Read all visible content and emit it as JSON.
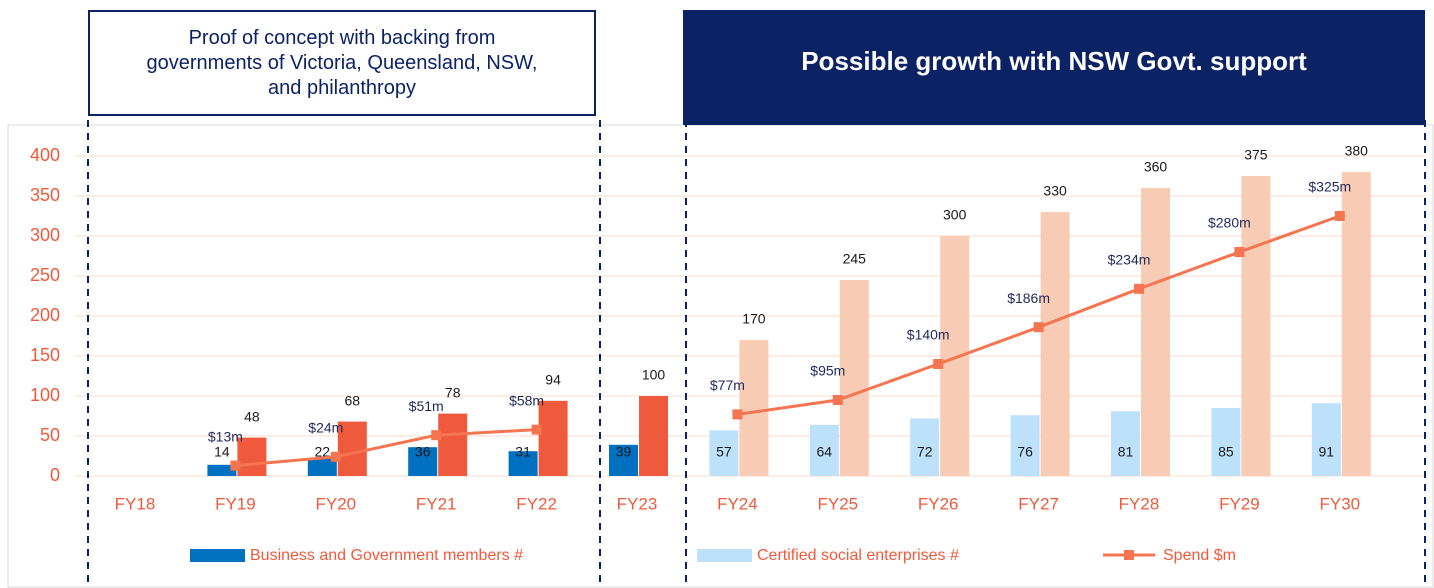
{
  "header": {
    "left": "Proof of concept with backing from governments of Victoria, Queensland, NSW, and philanthropy",
    "right": "Possible growth with NSW Govt. support"
  },
  "chart_data": {
    "type": "bar",
    "categories": [
      "FY18",
      "FY19",
      "FY20",
      "FY21",
      "FY22",
      "FY23",
      "FY24",
      "FY25",
      "FY26",
      "FY27",
      "FY28",
      "FY29",
      "FY30"
    ],
    "series": [
      {
        "name": "Business and Government members #",
        "color": "#0070c0",
        "values": [
          null,
          14,
          22,
          36,
          31,
          39,
          null,
          null,
          null,
          null,
          null,
          null,
          null
        ]
      },
      {
        "name": "Certified social enterprises #",
        "color": "#bde0fb",
        "values": [
          null,
          null,
          null,
          null,
          null,
          null,
          57,
          64,
          72,
          76,
          81,
          85,
          91
        ]
      },
      {
        "color": "#f05a3c",
        "values": [
          null,
          48,
          68,
          78,
          94,
          100,
          null,
          null,
          null,
          null,
          null,
          null,
          null
        ]
      },
      {
        "color": "#f8cbb4",
        "values": [
          null,
          null,
          null,
          null,
          null,
          null,
          170,
          245,
          300,
          330,
          360,
          375,
          380
        ]
      },
      {
        "name": "Spend $m",
        "type": "line",
        "color": "#f4754f",
        "values": [
          null,
          13,
          24,
          51,
          58,
          null,
          77,
          95,
          140,
          186,
          234,
          280,
          325
        ],
        "value_labels": [
          null,
          "$13m",
          "$24m",
          "$51m",
          "$58m",
          null,
          "$77m",
          "$95m",
          "$140m",
          "$186m",
          "$234m",
          "$280m",
          "$325m"
        ]
      }
    ],
    "ylim": [
      0,
      400
    ],
    "yticks": [
      0,
      50,
      100,
      150,
      200,
      250,
      300,
      350,
      400
    ],
    "grid": true
  }
}
